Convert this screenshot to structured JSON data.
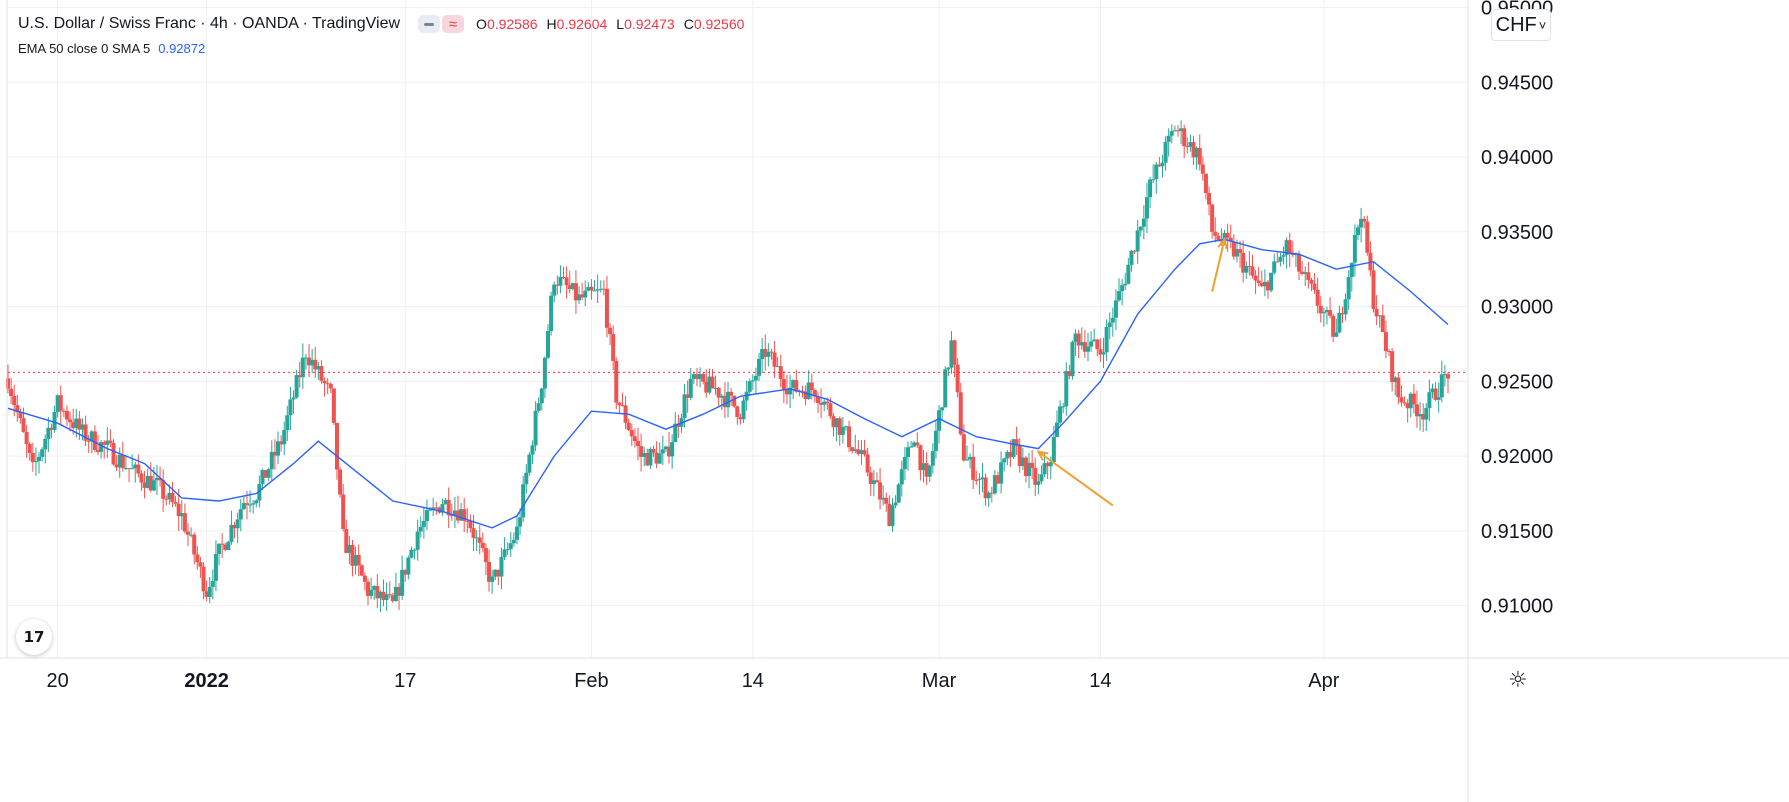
{
  "header": {
    "symbol_title": "U.S. Dollar / Swiss Franc · 4h · OANDA · TradingView",
    "ohlc": {
      "o_label": "O",
      "o_value": "0.92586",
      "h_label": "H",
      "h_value": "0.92604",
      "l_label": "L",
      "l_value": "0.92473",
      "c_label": "C",
      "c_value": "0.92560"
    },
    "indicator_label": "EMA 50 close 0 SMA 5",
    "indicator_value": "0.92872",
    "logo_text": "17"
  },
  "price_axis": {
    "currency": "CHF",
    "ticks": [
      "0.95000",
      "0.94500",
      "0.94000",
      "0.93500",
      "0.93000",
      "0.92500",
      "0.92000",
      "0.91500",
      "0.91000"
    ]
  },
  "time_axis": {
    "ticks": [
      {
        "label": "20",
        "bold": false
      },
      {
        "label": "2022",
        "bold": true
      },
      {
        "label": "17",
        "bold": false
      },
      {
        "label": "Feb",
        "bold": false
      },
      {
        "label": "14",
        "bold": false
      },
      {
        "label": "Mar",
        "bold": false
      },
      {
        "label": "14",
        "bold": false
      },
      {
        "label": "Apr",
        "bold": false
      }
    ]
  },
  "colors": {
    "up": "#26a69a",
    "down": "#ef5350",
    "ema": "#2962ff",
    "last_price_line": "#f23645",
    "annotation_arrow": "#f0a030",
    "grid": "#eef0f3",
    "axis_text": "#131722"
  },
  "icons": {
    "settings": "gear-icon",
    "logo": "tradingview-logo-icon",
    "currency_menu": "chevron-down-icon"
  },
  "chart_data": {
    "type": "candlestick",
    "symbol": "USD/CHF",
    "interval": "4h",
    "ylim": [
      0.9065,
      0.9505
    ],
    "last_close": 0.9256,
    "indicator": "EMA 50",
    "price_path": [
      [
        "2021-12-16",
        0.9252
      ],
      [
        "2021-12-18",
        0.919
      ],
      [
        "2021-12-20",
        0.9235
      ],
      [
        "2021-12-22",
        0.9215
      ],
      [
        "2021-12-24",
        0.9205
      ],
      [
        "2021-12-26",
        0.919
      ],
      [
        "2021-12-28",
        0.918
      ],
      [
        "2021-12-30",
        0.916
      ],
      [
        "2022-01-01",
        0.911
      ],
      [
        "2022-01-02",
        0.9135
      ],
      [
        "2022-01-04",
        0.917
      ],
      [
        "2022-01-05",
        0.9175
      ],
      [
        "2022-01-07",
        0.921
      ],
      [
        "2022-01-09",
        0.927
      ],
      [
        "2022-01-11",
        0.924
      ],
      [
        "2022-01-12",
        0.9145
      ],
      [
        "2022-01-14",
        0.911
      ],
      [
        "2022-01-16",
        0.91
      ],
      [
        "2022-01-18",
        0.915
      ],
      [
        "2022-01-20",
        0.917
      ],
      [
        "2022-01-22",
        0.916
      ],
      [
        "2022-01-24",
        0.9115
      ],
      [
        "2022-01-26",
        0.915
      ],
      [
        "2022-01-28",
        0.925
      ],
      [
        "2022-01-29",
        0.932
      ],
      [
        "2022-01-31",
        0.9305
      ],
      [
        "2022-02-02",
        0.931
      ],
      [
        "2022-02-03",
        0.924
      ],
      [
        "2022-02-05",
        0.92
      ],
      [
        "2022-02-07",
        0.92
      ],
      [
        "2022-02-09",
        0.925
      ],
      [
        "2022-02-11",
        0.9245
      ],
      [
        "2022-02-13",
        0.923
      ],
      [
        "2022-02-15",
        0.927
      ],
      [
        "2022-02-17",
        0.9245
      ],
      [
        "2022-02-19",
        0.9245
      ],
      [
        "2022-02-21",
        0.922
      ],
      [
        "2022-02-23",
        0.9195
      ],
      [
        "2022-02-25",
        0.916
      ],
      [
        "2022-02-27",
        0.9215
      ],
      [
        "2022-02-28",
        0.918
      ],
      [
        "2022-03-02",
        0.9275
      ],
      [
        "2022-03-03",
        0.92
      ],
      [
        "2022-03-05",
        0.9175
      ],
      [
        "2022-03-07",
        0.9205
      ],
      [
        "2022-03-09",
        0.918
      ],
      [
        "2022-03-10",
        0.92
      ],
      [
        "2022-03-12",
        0.928
      ],
      [
        "2022-03-14",
        0.927
      ],
      [
        "2022-03-16",
        0.932
      ],
      [
        "2022-03-18",
        0.938
      ],
      [
        "2022-03-20",
        0.942
      ],
      [
        "2022-03-22",
        0.94
      ],
      [
        "2022-03-23",
        0.935
      ],
      [
        "2022-03-25",
        0.9335
      ],
      [
        "2022-03-27",
        0.931
      ],
      [
        "2022-03-29",
        0.934
      ],
      [
        "2022-03-31",
        0.931
      ],
      [
        "2022-04-02",
        0.928
      ],
      [
        "2022-04-04",
        0.9365
      ],
      [
        "2022-04-05",
        0.9305
      ],
      [
        "2022-04-07",
        0.924
      ],
      [
        "2022-04-09",
        0.923
      ],
      [
        "2022-04-11",
        0.9256
      ]
    ],
    "ema_path": [
      [
        "2021-12-16",
        0.9232
      ],
      [
        "2021-12-20",
        0.9222
      ],
      [
        "2021-12-24",
        0.9205
      ],
      [
        "2021-12-27",
        0.9195
      ],
      [
        "2021-12-30",
        0.9172
      ],
      [
        "2022-01-02",
        0.917
      ],
      [
        "2022-01-05",
        0.9175
      ],
      [
        "2022-01-08",
        0.9195
      ],
      [
        "2022-01-10",
        0.921
      ],
      [
        "2022-01-13",
        0.919
      ],
      [
        "2022-01-16",
        0.917
      ],
      [
        "2022-01-20",
        0.9163
      ],
      [
        "2022-01-24",
        0.9152
      ],
      [
        "2022-01-26",
        0.916
      ],
      [
        "2022-01-29",
        0.92
      ],
      [
        "2022-02-01",
        0.923
      ],
      [
        "2022-02-04",
        0.9228
      ],
      [
        "2022-02-07",
        0.9218
      ],
      [
        "2022-02-10",
        0.9228
      ],
      [
        "2022-02-13",
        0.924
      ],
      [
        "2022-02-17",
        0.9245
      ],
      [
        "2022-02-20",
        0.9238
      ],
      [
        "2022-02-23",
        0.9225
      ],
      [
        "2022-02-26",
        0.9213
      ],
      [
        "2022-03-01",
        0.9225
      ],
      [
        "2022-03-04",
        0.9213
      ],
      [
        "2022-03-07",
        0.9208
      ],
      [
        "2022-03-09",
        0.9205
      ],
      [
        "2022-03-11",
        0.9222
      ],
      [
        "2022-03-14",
        0.925
      ],
      [
        "2022-03-17",
        0.9295
      ],
      [
        "2022-03-20",
        0.9325
      ],
      [
        "2022-03-22",
        0.9342
      ],
      [
        "2022-03-24",
        0.9345
      ],
      [
        "2022-03-27",
        0.9338
      ],
      [
        "2022-03-30",
        0.9335
      ],
      [
        "2022-04-02",
        0.9325
      ],
      [
        "2022-04-05",
        0.933
      ],
      [
        "2022-04-08",
        0.931
      ],
      [
        "2022-04-11",
        0.9288
      ]
    ],
    "annotations": [
      {
        "type": "arrow",
        "from": [
          "2022-03-15",
          0.9167
        ],
        "to": [
          "2022-03-09",
          0.9203
        ]
      },
      {
        "type": "arrow",
        "from": [
          "2022-03-23",
          0.931
        ],
        "to": [
          "2022-03-24",
          0.9345
        ]
      }
    ]
  }
}
